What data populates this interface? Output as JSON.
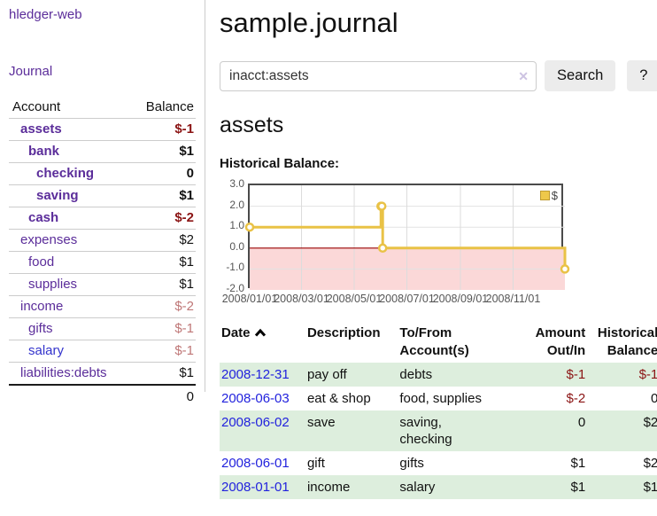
{
  "app_title": "hledger-web",
  "sidebar": {
    "journal_link": "Journal",
    "accounts_table": {
      "headers": {
        "account": "Account",
        "balance": "Balance"
      },
      "rows": [
        {
          "account": "assets",
          "balance": "$-1",
          "indent": 1,
          "bold": true
        },
        {
          "account": "bank",
          "balance": "$1",
          "indent": 2,
          "bold": true
        },
        {
          "account": "checking",
          "balance": "0",
          "indent": 3,
          "bold": true
        },
        {
          "account": "saving",
          "balance": "$1",
          "indent": 3,
          "bold": true
        },
        {
          "account": "cash",
          "balance": "$-2",
          "indent": 2,
          "bold": true
        },
        {
          "account": "expenses",
          "balance": "$2",
          "indent": 1,
          "bold": false
        },
        {
          "account": "food",
          "balance": "$1",
          "indent": 2,
          "bold": false
        },
        {
          "account": "supplies",
          "balance": "$1",
          "indent": 2,
          "bold": false
        },
        {
          "account": "income",
          "balance": "$-2",
          "indent": 1,
          "bold": false
        },
        {
          "account": "gifts",
          "balance": "$-1",
          "indent": 2,
          "bold": false
        },
        {
          "account": "salary",
          "balance": "$-1",
          "indent": 2,
          "bold": false,
          "link_color": "blue"
        },
        {
          "account": "liabilities:debts",
          "balance": "$1",
          "indent": 1,
          "bold": false
        }
      ],
      "total": "0"
    }
  },
  "main": {
    "title": "sample.journal",
    "search": {
      "value": "inacct:assets",
      "clear_icon": "✕",
      "search_button": "Search",
      "help_button": "?"
    },
    "account_heading": "assets",
    "section_label": "Historical Balance:"
  },
  "chart_data": {
    "type": "line",
    "title": "Historical Balance",
    "step": true,
    "x_start": "2008-01-01",
    "x_end": "2008-12-31",
    "x_ticks": [
      "2008/01/01",
      "2008/03/01",
      "2008/05/01",
      "2008/07/01",
      "2008/09/01",
      "2008/11/01"
    ],
    "y_ticks": [
      "3.0",
      "2.0",
      "1.0",
      "0.0",
      "-1.0",
      "-2.0"
    ],
    "ylim": [
      -2,
      3
    ],
    "series": [
      {
        "name": "$",
        "color": "#e9c246",
        "points": [
          {
            "date": "2008-01-01",
            "value": 1
          },
          {
            "date": "2008-06-01",
            "value": 2
          },
          {
            "date": "2008-06-02",
            "value": 2
          },
          {
            "date": "2008-06-03",
            "value": 0
          },
          {
            "date": "2008-12-31",
            "value": -1
          }
        ]
      }
    ],
    "legend": {
      "label": "$",
      "position": "top-right"
    },
    "grid": true,
    "negative_region_color": "#fbd8d8",
    "zero_line_color": "#990000"
  },
  "register": {
    "headers": [
      {
        "label": "Date",
        "sort": "asc"
      },
      {
        "label": "Description"
      },
      {
        "label": "To/From\nAccount(s)"
      },
      {
        "label": "Amount\nOut/In",
        "align": "right"
      },
      {
        "label": "Historical\nBalance",
        "align": "right"
      }
    ],
    "rows": [
      {
        "date": "2008-12-31",
        "description": "pay off",
        "accounts": "debts",
        "amount": "$-1",
        "balance": "$-1"
      },
      {
        "date": "2008-06-03",
        "description": "eat & shop",
        "accounts": "food, supplies",
        "amount": "$-2",
        "balance": "0"
      },
      {
        "date": "2008-06-02",
        "description": "save",
        "accounts": "saving,\nchecking",
        "amount": "0",
        "balance": "$2"
      },
      {
        "date": "2008-06-01",
        "description": "gift",
        "accounts": "gifts",
        "amount": "$1",
        "balance": "$2"
      },
      {
        "date": "2008-01-01",
        "description": "income",
        "accounts": "salary",
        "amount": "$1",
        "balance": "$1"
      }
    ]
  },
  "colors": {
    "accent_purple": "#5b2d9a",
    "link_blue": "#2222dd",
    "negative_strong": "#8b1414",
    "negative_muted": "#bf7777",
    "row_green": "#ddeedd",
    "chart_line": "#e9c246",
    "chart_negative_bg": "#fbd8d8",
    "chart_zero_line": "#990000"
  }
}
